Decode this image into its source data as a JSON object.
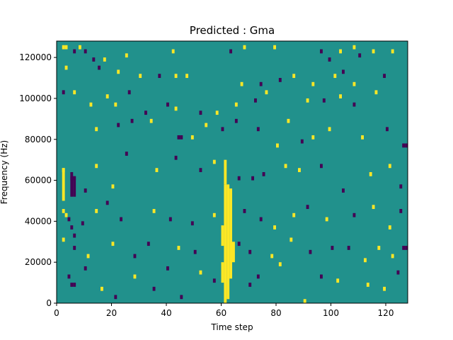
{
  "chart_data": {
    "type": "heatmap",
    "title": "Predicted : Gma",
    "xlabel": "Time step",
    "ylabel": "Frequency (Hz)",
    "xlim": [
      0,
      128
    ],
    "ylim": [
      0,
      128000
    ],
    "xticks": [
      0,
      20,
      40,
      60,
      80,
      100,
      120
    ],
    "yticks": [
      0,
      20000,
      40000,
      60000,
      80000,
      100000,
      120000
    ],
    "colormap": "viridis",
    "background_value": 0,
    "colors": {
      "low": "#440154",
      "mid": "#21918c",
      "high": "#fde725"
    },
    "grid": false,
    "cells": [
      {
        "x": 2,
        "y": 124000,
        "v": 1
      },
      {
        "x": 3,
        "y": 124000,
        "v": 1
      },
      {
        "x": 6,
        "y": 122000,
        "v": -1
      },
      {
        "x": 8,
        "y": 124000,
        "v": 1
      },
      {
        "x": 10,
        "y": 122000,
        "v": -1
      },
      {
        "x": 13,
        "y": 118000,
        "v": -1
      },
      {
        "x": 17,
        "y": 118000,
        "v": 1
      },
      {
        "x": 25,
        "y": 120000,
        "v": 1
      },
      {
        "x": 42,
        "y": 122000,
        "v": 1
      },
      {
        "x": 63,
        "y": 122000,
        "v": -1
      },
      {
        "x": 68,
        "y": 124000,
        "v": 1
      },
      {
        "x": 79,
        "y": 124000,
        "v": 1
      },
      {
        "x": 96,
        "y": 122000,
        "v": -1
      },
      {
        "x": 99,
        "y": 118000,
        "v": -1
      },
      {
        "x": 103,
        "y": 122000,
        "v": 1
      },
      {
        "x": 108,
        "y": 124000,
        "v": 1
      },
      {
        "x": 110,
        "y": 120000,
        "v": -1
      },
      {
        "x": 115,
        "y": 122000,
        "v": 1
      },
      {
        "x": 122,
        "y": 122000,
        "v": 1
      },
      {
        "x": 3,
        "y": 114000,
        "v": 1
      },
      {
        "x": 15,
        "y": 114000,
        "v": -1
      },
      {
        "x": 22,
        "y": 112000,
        "v": 1
      },
      {
        "x": 30,
        "y": 110000,
        "v": 1
      },
      {
        "x": 37,
        "y": 110000,
        "v": -1
      },
      {
        "x": 43,
        "y": 110000,
        "v": 1
      },
      {
        "x": 47,
        "y": 110000,
        "v": 1
      },
      {
        "x": 67,
        "y": 106000,
        "v": 1
      },
      {
        "x": 74,
        "y": 106000,
        "v": -1
      },
      {
        "x": 81,
        "y": 108000,
        "v": -1
      },
      {
        "x": 86,
        "y": 110000,
        "v": 1
      },
      {
        "x": 93,
        "y": 106000,
        "v": 1
      },
      {
        "x": 101,
        "y": 110000,
        "v": 1
      },
      {
        "x": 104,
        "y": 112000,
        "v": -1
      },
      {
        "x": 108,
        "y": 106000,
        "v": 1
      },
      {
        "x": 119,
        "y": 110000,
        "v": -1
      },
      {
        "x": 2,
        "y": 102000,
        "v": -1
      },
      {
        "x": 6,
        "y": 102000,
        "v": 1
      },
      {
        "x": 12,
        "y": 96000,
        "v": 1
      },
      {
        "x": 18,
        "y": 100000,
        "v": 1
      },
      {
        "x": 21,
        "y": 96000,
        "v": 1
      },
      {
        "x": 26,
        "y": 102000,
        "v": -1
      },
      {
        "x": 32,
        "y": 92000,
        "v": -1
      },
      {
        "x": 40,
        "y": 96000,
        "v": -1
      },
      {
        "x": 43,
        "y": 94000,
        "v": 1
      },
      {
        "x": 52,
        "y": 92000,
        "v": -1
      },
      {
        "x": 58,
        "y": 92000,
        "v": 1
      },
      {
        "x": 65,
        "y": 96000,
        "v": 1
      },
      {
        "x": 72,
        "y": 98000,
        "v": -1
      },
      {
        "x": 76,
        "y": 102000,
        "v": 1
      },
      {
        "x": 84,
        "y": 88000,
        "v": 1
      },
      {
        "x": 91,
        "y": 98000,
        "v": 1
      },
      {
        "x": 97,
        "y": 98000,
        "v": -1
      },
      {
        "x": 103,
        "y": 100000,
        "v": 1
      },
      {
        "x": 108,
        "y": 96000,
        "v": -1
      },
      {
        "x": 116,
        "y": 102000,
        "v": 1
      },
      {
        "x": 14,
        "y": 84000,
        "v": 1
      },
      {
        "x": 22,
        "y": 86000,
        "v": -1
      },
      {
        "x": 27,
        "y": 88000,
        "v": -1
      },
      {
        "x": 34,
        "y": 88000,
        "v": 1
      },
      {
        "x": 44,
        "y": 80000,
        "v": -1
      },
      {
        "x": 45,
        "y": 80000,
        "v": -1
      },
      {
        "x": 49,
        "y": 80000,
        "v": 1
      },
      {
        "x": 54,
        "y": 86000,
        "v": 1
      },
      {
        "x": 60,
        "y": 84000,
        "v": -1
      },
      {
        "x": 65,
        "y": 88000,
        "v": -1
      },
      {
        "x": 73,
        "y": 84000,
        "v": -1
      },
      {
        "x": 80,
        "y": 76000,
        "v": 1
      },
      {
        "x": 89,
        "y": 78000,
        "v": -1
      },
      {
        "x": 93,
        "y": 80000,
        "v": 1
      },
      {
        "x": 99,
        "y": 84000,
        "v": 1
      },
      {
        "x": 111,
        "y": 80000,
        "v": 1
      },
      {
        "x": 120,
        "y": 84000,
        "v": -1
      },
      {
        "x": 126,
        "y": 76000,
        "v": -1
      },
      {
        "x": 127,
        "y": 76000,
        "v": -1
      },
      {
        "x": 2,
        "y": 64000,
        "v": 1
      },
      {
        "x": 5,
        "y": 60000,
        "v": -1
      },
      {
        "x": 6,
        "y": 60000,
        "v": -1
      },
      {
        "x": 10,
        "y": 54000,
        "v": -1
      },
      {
        "x": 14,
        "y": 66000,
        "v": 1
      },
      {
        "x": 20,
        "y": 56000,
        "v": 1
      },
      {
        "x": 25,
        "y": 72000,
        "v": -1
      },
      {
        "x": 36,
        "y": 64000,
        "v": 1
      },
      {
        "x": 43,
        "y": 70000,
        "v": -1
      },
      {
        "x": 52,
        "y": 64000,
        "v": -1
      },
      {
        "x": 57,
        "y": 68000,
        "v": 1
      },
      {
        "x": 66,
        "y": 60000,
        "v": -1
      },
      {
        "x": 71,
        "y": 60000,
        "v": -1
      },
      {
        "x": 75,
        "y": 62000,
        "v": -1
      },
      {
        "x": 83,
        "y": 66000,
        "v": 1
      },
      {
        "x": 88,
        "y": 64000,
        "v": 1
      },
      {
        "x": 96,
        "y": 66000,
        "v": -1
      },
      {
        "x": 104,
        "y": 54000,
        "v": -1
      },
      {
        "x": 114,
        "y": 62000,
        "v": 1
      },
      {
        "x": 121,
        "y": 66000,
        "v": 1
      },
      {
        "x": 125,
        "y": 56000,
        "v": -1
      },
      {
        "x": 2,
        "y": 44000,
        "v": 1
      },
      {
        "x": 3,
        "y": 42000,
        "v": 1
      },
      {
        "x": 4,
        "y": 40000,
        "v": -1
      },
      {
        "x": 5,
        "y": 36000,
        "v": -1
      },
      {
        "x": 6,
        "y": 32000,
        "v": -1
      },
      {
        "x": 9,
        "y": 38000,
        "v": -1
      },
      {
        "x": 14,
        "y": 44000,
        "v": 1
      },
      {
        "x": 18,
        "y": 48000,
        "v": -1
      },
      {
        "x": 23,
        "y": 40000,
        "v": -1
      },
      {
        "x": 35,
        "y": 44000,
        "v": 1
      },
      {
        "x": 41,
        "y": 40000,
        "v": -1
      },
      {
        "x": 49,
        "y": 38000,
        "v": -1
      },
      {
        "x": 57,
        "y": 42000,
        "v": 1
      },
      {
        "x": 68,
        "y": 44000,
        "v": -1
      },
      {
        "x": 74,
        "y": 40000,
        "v": -1
      },
      {
        "x": 79,
        "y": 36000,
        "v": 1
      },
      {
        "x": 86,
        "y": 42000,
        "v": 1
      },
      {
        "x": 91,
        "y": 46000,
        "v": -1
      },
      {
        "x": 98,
        "y": 40000,
        "v": 1
      },
      {
        "x": 108,
        "y": 42000,
        "v": -1
      },
      {
        "x": 115,
        "y": 46000,
        "v": 1
      },
      {
        "x": 121,
        "y": 36000,
        "v": 1
      },
      {
        "x": 125,
        "y": 44000,
        "v": -1
      },
      {
        "x": 2,
        "y": 30000,
        "v": 1
      },
      {
        "x": 6,
        "y": 26000,
        "v": -1
      },
      {
        "x": 11,
        "y": 22000,
        "v": 1
      },
      {
        "x": 20,
        "y": 28000,
        "v": 1
      },
      {
        "x": 28,
        "y": 22000,
        "v": -1
      },
      {
        "x": 33,
        "y": 28000,
        "v": -1
      },
      {
        "x": 44,
        "y": 26000,
        "v": 1
      },
      {
        "x": 50,
        "y": 24000,
        "v": -1
      },
      {
        "x": 66,
        "y": 28000,
        "v": -1
      },
      {
        "x": 70,
        "y": 24000,
        "v": -1
      },
      {
        "x": 78,
        "y": 22000,
        "v": 1
      },
      {
        "x": 85,
        "y": 30000,
        "v": 1
      },
      {
        "x": 92,
        "y": 24000,
        "v": -1
      },
      {
        "x": 100,
        "y": 26000,
        "v": -1
      },
      {
        "x": 106,
        "y": 26000,
        "v": -1
      },
      {
        "x": 112,
        "y": 20000,
        "v": 1
      },
      {
        "x": 117,
        "y": 26000,
        "v": 1
      },
      {
        "x": 122,
        "y": 22000,
        "v": 1
      },
      {
        "x": 126,
        "y": 26000,
        "v": -1
      },
      {
        "x": 127,
        "y": 26000,
        "v": -1
      },
      {
        "x": 4,
        "y": 12000,
        "v": -1
      },
      {
        "x": 5,
        "y": 8000,
        "v": -1
      },
      {
        "x": 6,
        "y": 8000,
        "v": -1
      },
      {
        "x": 10,
        "y": 16000,
        "v": -1
      },
      {
        "x": 16,
        "y": 6000,
        "v": 1
      },
      {
        "x": 21,
        "y": 2000,
        "v": -1
      },
      {
        "x": 28,
        "y": 12000,
        "v": 1
      },
      {
        "x": 35,
        "y": 6000,
        "v": -1
      },
      {
        "x": 40,
        "y": 16000,
        "v": -1
      },
      {
        "x": 45,
        "y": 2000,
        "v": -1
      },
      {
        "x": 52,
        "y": 14000,
        "v": 1
      },
      {
        "x": 57,
        "y": 10000,
        "v": -1
      },
      {
        "x": 70,
        "y": 8000,
        "v": -1
      },
      {
        "x": 73,
        "y": 12000,
        "v": -1
      },
      {
        "x": 81,
        "y": 18000,
        "v": 1
      },
      {
        "x": 90,
        "y": 0,
        "v": 1
      },
      {
        "x": 96,
        "y": 12000,
        "v": -1
      },
      {
        "x": 102,
        "y": 10000,
        "v": 1
      },
      {
        "x": 113,
        "y": 8000,
        "v": 1
      },
      {
        "x": 119,
        "y": 6000,
        "v": 1
      },
      {
        "x": 124,
        "y": 14000,
        "v": -1
      }
    ],
    "bands": [
      {
        "x": 61,
        "y_from": 0,
        "y_to": 58000,
        "v": 1
      },
      {
        "x": 62,
        "y_from": 2000,
        "y_to": 58000,
        "v": 1
      },
      {
        "x": 63,
        "y_from": 12000,
        "y_to": 56000,
        "v": 1
      },
      {
        "x": 60,
        "y_from": 10000,
        "y_to": 20000,
        "v": 1
      },
      {
        "x": 60,
        "y_from": 28000,
        "y_to": 38000,
        "v": 1
      },
      {
        "x": 61,
        "y_from": 58000,
        "y_to": 70000,
        "v": 1
      },
      {
        "x": 64,
        "y_from": 20000,
        "y_to": 30000,
        "v": 1
      },
      {
        "x": 2,
        "y_from": 50000,
        "y_to": 66000,
        "v": 1
      },
      {
        "x": 5,
        "y_from": 52000,
        "y_to": 64000,
        "v": -1
      },
      {
        "x": 6,
        "y_from": 52000,
        "y_to": 62000,
        "v": -1
      }
    ]
  }
}
